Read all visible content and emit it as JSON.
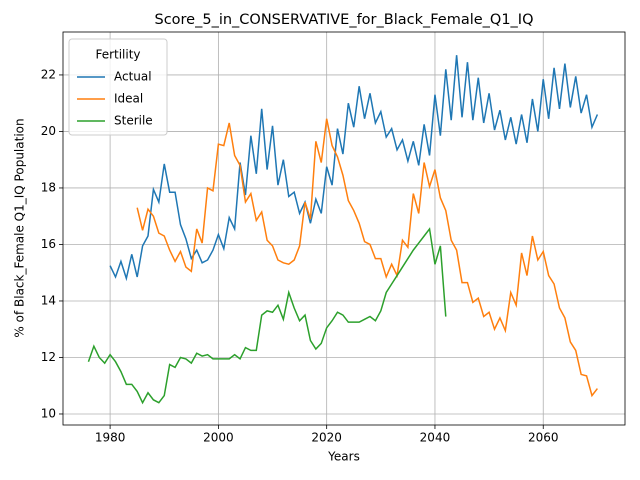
{
  "chart_data": {
    "type": "line",
    "title": "Score_5_in_CONSERVATIVE_for_Black_Female_Q1_IQ",
    "x_label": "Years",
    "y_label": "% of Black_Female Q1_IQ Population",
    "legend_title": "Fertility",
    "legend": "upper left",
    "grid": true,
    "xlim": [
      1971.3,
      2075.1
    ],
    "ylim": [
      9.61,
      23.52
    ],
    "xticks": [
      1980,
      2000,
      2020,
      2040,
      2060
    ],
    "yticks": [
      10,
      12,
      14,
      16,
      18,
      20,
      22
    ],
    "x": [
      1976,
      1977,
      1978,
      1979,
      1980,
      1981,
      1982,
      1983,
      1984,
      1985,
      1986,
      1987,
      1988,
      1989,
      1990,
      1991,
      1992,
      1993,
      1994,
      1995,
      1996,
      1997,
      1998,
      1999,
      2000,
      2001,
      2002,
      2003,
      2004,
      2005,
      2006,
      2007,
      2008,
      2009,
      2010,
      2011,
      2012,
      2013,
      2014,
      2015,
      2016,
      2017,
      2018,
      2019,
      2020,
      2021,
      2022,
      2023,
      2024,
      2025,
      2026,
      2027,
      2028,
      2029,
      2030,
      2031,
      2032,
      2033,
      2034,
      2035,
      2036,
      2037,
      2038,
      2039,
      2040,
      2041,
      2042,
      2043,
      2044,
      2045,
      2046,
      2047,
      2048,
      2049,
      2050,
      2051,
      2052,
      2053,
      2054,
      2055,
      2056,
      2057,
      2058,
      2059,
      2060,
      2061,
      2062,
      2063,
      2064,
      2065,
      2066,
      2067,
      2068,
      2069,
      2070
    ],
    "series": [
      {
        "name": "Actual",
        "color": "#1f77b4",
        "values": [
          null,
          null,
          null,
          null,
          15.25,
          14.85,
          15.4,
          14.8,
          15.65,
          14.85,
          15.95,
          16.3,
          17.95,
          17.5,
          18.85,
          17.85,
          17.85,
          16.7,
          16.2,
          15.5,
          15.8,
          15.35,
          15.45,
          15.8,
          16.35,
          15.85,
          16.95,
          16.55,
          18.9,
          17.75,
          19.85,
          18.5,
          20.8,
          18.65,
          20.2,
          18.1,
          19.0,
          17.7,
          17.85,
          17.1,
          17.5,
          16.75,
          17.6,
          17.1,
          18.75,
          18.1,
          20.1,
          19.2,
          21.0,
          20.15,
          21.6,
          20.45,
          21.35,
          20.3,
          20.7,
          19.8,
          20.1,
          19.35,
          19.7,
          18.95,
          19.65,
          18.8,
          20.25,
          19.15,
          21.3,
          19.85,
          22.2,
          20.4,
          22.7,
          20.5,
          22.45,
          20.4,
          21.9,
          20.3,
          21.35,
          20.05,
          20.75,
          19.7,
          20.5,
          19.55,
          20.6,
          19.6,
          21.15,
          20.0,
          21.85,
          20.45,
          22.25,
          20.8,
          22.4,
          20.85,
          21.95,
          20.65,
          21.3,
          20.15,
          20.6
        ]
      },
      {
        "name": "Ideal",
        "color": "#ff7f0e",
        "values": [
          null,
          null,
          null,
          null,
          null,
          null,
          null,
          null,
          null,
          17.3,
          16.5,
          17.25,
          17.0,
          16.4,
          16.3,
          15.8,
          15.4,
          15.75,
          15.2,
          15.05,
          16.55,
          16.05,
          18.0,
          17.9,
          19.55,
          19.5,
          20.3,
          19.15,
          18.8,
          17.5,
          17.8,
          16.85,
          17.15,
          16.15,
          15.95,
          15.45,
          15.35,
          15.3,
          15.45,
          15.95,
          17.5,
          16.9,
          19.65,
          18.9,
          20.45,
          19.5,
          19.1,
          18.45,
          17.55,
          17.2,
          16.75,
          16.1,
          16.0,
          15.5,
          15.5,
          14.85,
          15.3,
          14.9,
          16.15,
          15.9,
          17.8,
          17.1,
          18.9,
          18.05,
          18.65,
          17.65,
          17.2,
          16.15,
          15.8,
          14.65,
          14.65,
          13.95,
          14.1,
          13.45,
          13.6,
          13.0,
          13.4,
          12.95,
          14.3,
          13.85,
          15.7,
          14.9,
          16.3,
          15.45,
          15.75,
          14.9,
          14.6,
          13.75,
          13.4,
          12.55,
          12.25,
          11.4,
          11.35,
          10.65,
          10.9
        ]
      },
      {
        "name": "Sterile",
        "color": "#2ca02c",
        "values": [
          11.85,
          12.4,
          12.0,
          11.8,
          12.1,
          11.85,
          11.5,
          11.05,
          11.05,
          10.8,
          10.4,
          10.75,
          10.5,
          10.4,
          10.65,
          11.75,
          11.65,
          12.0,
          11.95,
          11.8,
          12.15,
          12.05,
          12.1,
          11.95,
          11.95,
          11.95,
          11.95,
          12.1,
          11.95,
          12.35,
          12.25,
          12.25,
          13.5,
          13.65,
          13.6,
          13.85,
          13.35,
          14.3,
          13.75,
          13.3,
          13.5,
          12.6,
          12.3,
          12.5,
          13.05,
          13.3,
          13.6,
          13.5,
          13.25,
          13.25,
          13.25,
          13.35,
          13.45,
          13.3,
          13.65,
          14.3,
          14.6,
          14.9,
          15.2,
          15.5,
          15.8,
          16.05,
          16.3,
          16.55,
          15.3,
          15.95,
          13.45,
          null,
          null,
          null,
          null,
          null,
          null,
          null,
          null,
          null,
          null,
          null,
          null,
          null,
          null,
          null,
          null,
          null,
          null,
          null,
          null,
          null,
          null,
          null,
          null,
          null,
          null,
          null,
          null
        ]
      }
    ]
  }
}
